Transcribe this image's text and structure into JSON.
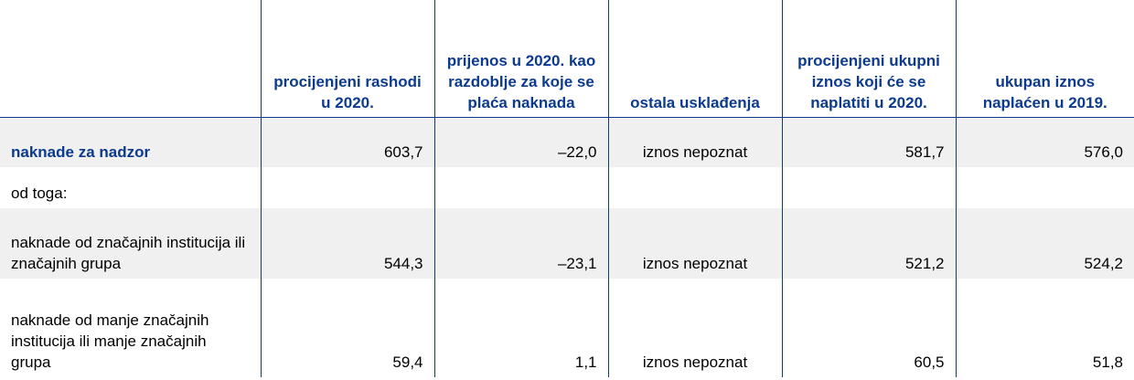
{
  "table": {
    "headers": [
      "",
      "procijenjeni rashodi u 2020.",
      "prijenos u 2020. kao razdoblje za koje se plaća naknada",
      "ostala usklađenja",
      "procijenjeni ukupni iznos koji će se naplatiti u 2020.",
      "ukupan iznos naplaćen u 2019."
    ],
    "rows": [
      {
        "label": "naknade za nadzor",
        "cells": [
          "603,7",
          "–22,0",
          "iznos nepoznat",
          "581,7",
          "576,0"
        ]
      },
      {
        "label": "od toga:",
        "cells": [
          "",
          "",
          "",
          "",
          ""
        ]
      },
      {
        "label": "naknade od značajnih institucija ili značajnih grupa",
        "cells": [
          "544,3",
          "–23,1",
          "iznos nepoznat",
          "521,2",
          "524,2"
        ]
      },
      {
        "label": "naknade od manje značajnih institucija ili manje značajnih grupa",
        "cells": [
          "59,4",
          "1,1",
          "iznos nepoznat",
          "60,5",
          "51,8"
        ]
      }
    ]
  },
  "colors": {
    "accent": "#0c3a8e",
    "row_shade": "#f0f0f0"
  }
}
